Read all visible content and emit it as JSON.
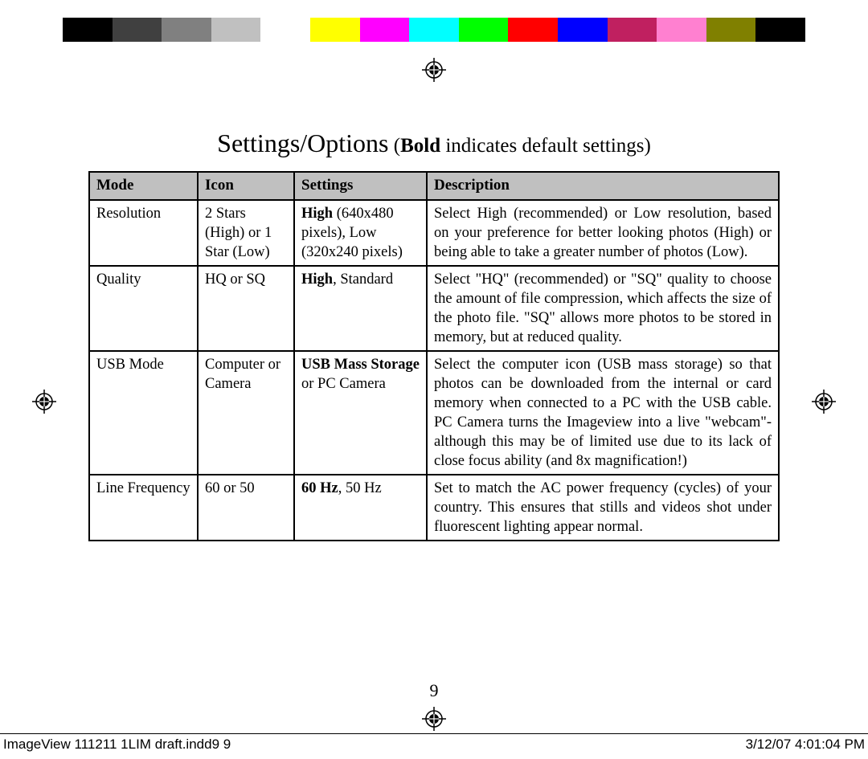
{
  "color_bar": {
    "colors": [
      "#000000",
      "#404040",
      "#808080",
      "#c0c0c0",
      "#ffffff",
      "#ffff00",
      "#ff00ff",
      "#00ffff",
      "#00ff00",
      "#ff0000",
      "#0000ff",
      "#c02060",
      "#ff80d0",
      "#808000",
      "#000000"
    ]
  },
  "title": {
    "main": "Settings/Options",
    "sub_bold": "Bold",
    "sub_rest": " indicates default settings)",
    "paren_open": "  ("
  },
  "table": {
    "headers": {
      "mode": "Mode",
      "icon": "Icon",
      "settings": "Settings",
      "description": "Description"
    },
    "rows": [
      {
        "mode": "Resolution",
        "icon": "2 Stars (High) or 1 Star (Low)",
        "settings_bold": "High",
        "settings_rest": " (640x480 pixels), Low (320x240 pixels)",
        "description": "Select High (recommended) or Low resolution, based on your preference for better looking photos (High) or being able to take a greater number of photos (Low)."
      },
      {
        "mode": "Quality",
        "icon": "HQ or SQ",
        "settings_bold": "High",
        "settings_rest": ", Standard",
        "description": "Select \"HQ\" (recommended) or \"SQ\" quality to choose the amount of file compression, which affects the size of the photo file. \"SQ\" allows more photos to be stored in memory, but at reduced quality."
      },
      {
        "mode": "USB Mode",
        "icon": "Computer or Camera",
        "settings_bold": "USB Mass Storage",
        "settings_rest": " or PC Camera",
        "description": "Select the computer icon (USB mass storage) so that photos can be downloaded from the internal or card memory when connected to a PC with the USB cable. PC Camera turns the Imageview into a live \"webcam\"-although this may be of limited use due to its lack of close focus ability (and 8x magnification!)"
      },
      {
        "mode": "Line Frequency",
        "icon": "60 or 50",
        "settings_bold": "60 Hz",
        "settings_rest": ", 50 Hz",
        "description": "Set to match the AC power frequency (cycles) of your country. This ensures that stills and videos shot under fluorescent lighting appear normal."
      }
    ],
    "header_bg": "#c0c0c0",
    "border_color": "#000000",
    "font_size_pt": 14
  },
  "page_number": "9",
  "footer": {
    "left": "ImageView 111211 1LIM draft.indd9   9",
    "right": "3/12/07   4:01:04 PM"
  }
}
